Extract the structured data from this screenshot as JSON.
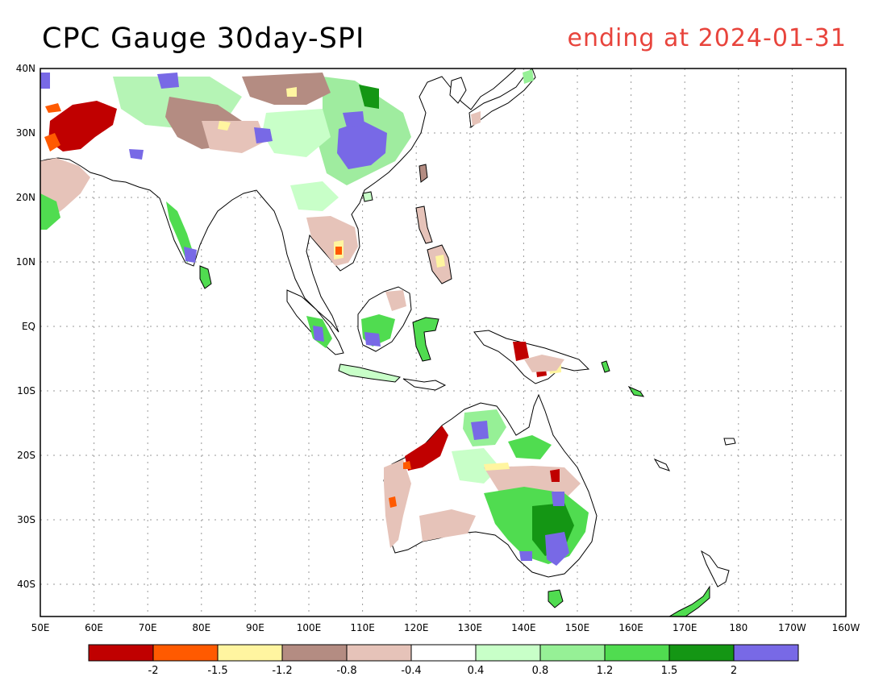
{
  "header": {
    "title": "CPC Gauge 30day-SPI",
    "date_label": "ending at 2024-01-31"
  },
  "map": {
    "lon_range": [
      50,
      200
    ],
    "lat_range": [
      -45,
      40
    ],
    "lat_ticks": [
      {
        "value": 40,
        "label": "40N"
      },
      {
        "value": 30,
        "label": "30N"
      },
      {
        "value": 20,
        "label": "20N"
      },
      {
        "value": 10,
        "label": "10N"
      },
      {
        "value": 0,
        "label": "EQ"
      },
      {
        "value": -10,
        "label": "10S"
      },
      {
        "value": -20,
        "label": "20S"
      },
      {
        "value": -30,
        "label": "30S"
      },
      {
        "value": -40,
        "label": "40S"
      }
    ],
    "lon_ticks": [
      {
        "value": 50,
        "label": "50E"
      },
      {
        "value": 60,
        "label": "60E"
      },
      {
        "value": 70,
        "label": "70E"
      },
      {
        "value": 80,
        "label": "80E"
      },
      {
        "value": 90,
        "label": "90E"
      },
      {
        "value": 100,
        "label": "100E"
      },
      {
        "value": 110,
        "label": "110E"
      },
      {
        "value": 120,
        "label": "120E"
      },
      {
        "value": 130,
        "label": "130E"
      },
      {
        "value": 140,
        "label": "140E"
      },
      {
        "value": 150,
        "label": "150E"
      },
      {
        "value": 160,
        "label": "160E"
      },
      {
        "value": 170,
        "label": "170E"
      },
      {
        "value": 180,
        "label": "180"
      },
      {
        "value": 190,
        "label": "170W"
      },
      {
        "value": 200,
        "label": "160W"
      }
    ],
    "grid": "dotted"
  },
  "legend": {
    "colors": [
      "#c00000",
      "#ff5a00",
      "#fff5a0",
      "#b48c82",
      "#e6c3b9",
      "#ffffff",
      "#c8ffc8",
      "#96f096",
      "#50dc50",
      "#149614",
      "#7869e6"
    ],
    "labels": [
      "-2",
      "-1.5",
      "-1.2",
      "-0.8",
      "-0.4",
      "0.4",
      "0.8",
      "1.2",
      "1.5",
      "2"
    ]
  }
}
